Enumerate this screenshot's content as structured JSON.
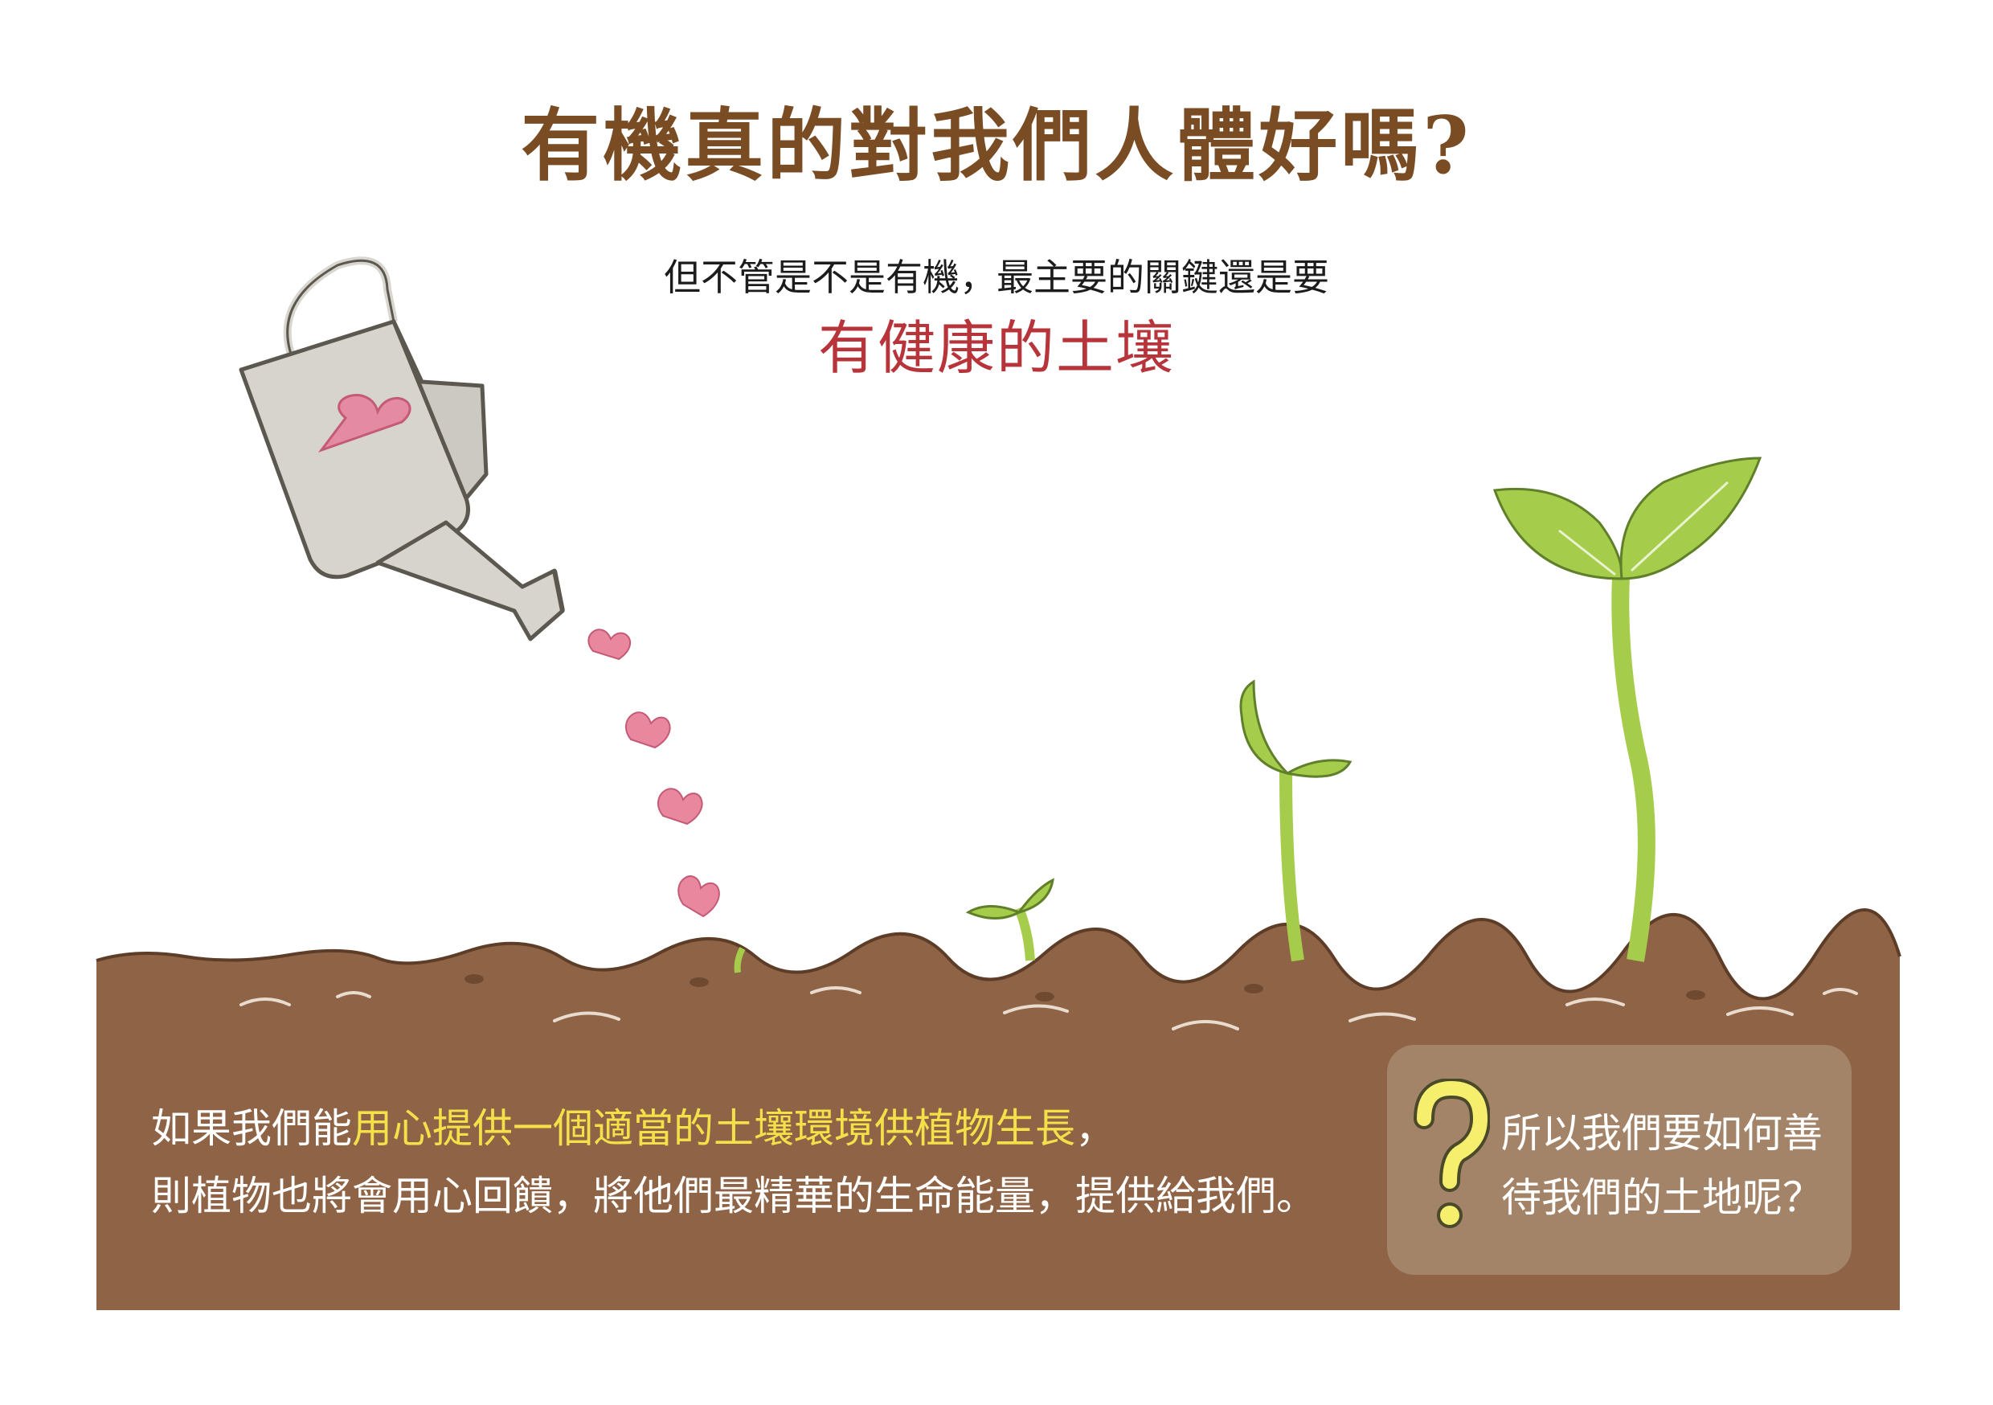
{
  "title": "有機真的對我們人體好嗎?",
  "subtitle": "但不管是不是有機，最主要的關鍵還是要",
  "highlight": "有健康的土壤",
  "body": {
    "line1_pre": "如果我們能",
    "line1_highlight": "用心提供一個適當的土壤環境供植物生長",
    "line1_post": "，",
    "line2": "則植物也將會用心回饋，將他們最精華的生命能量，提供給我們。"
  },
  "question": {
    "line1": "所以我們要如何善",
    "line2": "待我們的土地呢？"
  },
  "colors": {
    "title": "#7a4c24",
    "highlight": "#b8343b",
    "soil": "#8f6446",
    "leaf": "#a6cc4c",
    "heart": "#e2708e",
    "text_highlight": "#f4e14a"
  },
  "icons": [
    "watering-can-icon",
    "heart-icon",
    "seedling-icon",
    "question-mark-icon"
  ]
}
